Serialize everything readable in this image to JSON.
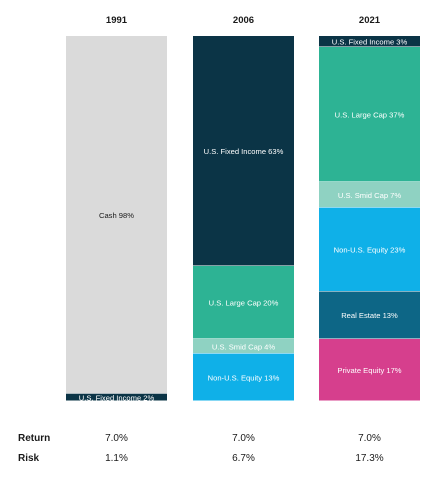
{
  "chart_data": {
    "type": "bar",
    "stacked": true,
    "normalized": true,
    "categories": [
      "1991",
      "2006",
      "2021"
    ],
    "series": [
      {
        "name": "Cash",
        "color": "#dadada",
        "text_color": "#1a1a1a",
        "values": [
          98,
          0,
          0
        ],
        "labels": [
          "Cash 98%",
          "",
          ""
        ]
      },
      {
        "name": "U.S. Fixed Income",
        "color": "#0b3446",
        "text_color": "#ffffff",
        "values": [
          2,
          63,
          3
        ],
        "labels": [
          "U.S. Fixed Income 2%",
          "U.S. Fixed Income 63%",
          "U.S. Fixed Income 3%"
        ]
      },
      {
        "name": "U.S. Large Cap",
        "color": "#2db394",
        "text_color": "#ffffff",
        "values": [
          0,
          20,
          37
        ],
        "labels": [
          "",
          "U.S. Large Cap 20%",
          "U.S. Large Cap 37%"
        ]
      },
      {
        "name": "U.S. Smid Cap",
        "color": "#8fd2c2",
        "text_color": "#ffffff",
        "values": [
          0,
          4,
          7
        ],
        "labels": [
          "",
          "U.S. Smid Cap 4%",
          "U.S. Smid Cap 7%"
        ]
      },
      {
        "name": "Non-U.S. Equity",
        "color": "#0fb0e8",
        "text_color": "#ffffff",
        "values": [
          0,
          13,
          23
        ],
        "labels": [
          "",
          "Non-U.S. Equity 13%",
          "Non-U.S. Equity 23%"
        ]
      },
      {
        "name": "Real Estate",
        "color": "#0d6686",
        "text_color": "#ffffff",
        "values": [
          0,
          0,
          13
        ],
        "labels": [
          "",
          "",
          "Real Estate 13%"
        ]
      },
      {
        "name": "Private Equity",
        "color": "#d63f8d",
        "text_color": "#ffffff",
        "values": [
          0,
          0,
          17
        ],
        "labels": [
          "",
          "",
          "Private Equity 17%"
        ]
      }
    ],
    "stack_order": [
      [
        "Cash",
        "U.S. Fixed Income"
      ],
      [
        "U.S. Fixed Income",
        "U.S. Large Cap",
        "U.S. Smid Cap",
        "Non-U.S. Equity"
      ],
      [
        "U.S. Fixed Income",
        "U.S. Large Cap",
        "U.S. Smid Cap",
        "Non-U.S. Equity",
        "Real Estate",
        "Private Equity"
      ]
    ],
    "title": "",
    "xlabel": "",
    "ylabel": "",
    "legend": "none",
    "grid": false
  },
  "metrics": [
    {
      "label": "Return",
      "values": [
        "7.0%",
        "7.0%",
        "7.0%"
      ]
    },
    {
      "label": "Risk",
      "values": [
        "1.1%",
        "6.7%",
        "17.3%"
      ]
    }
  ]
}
